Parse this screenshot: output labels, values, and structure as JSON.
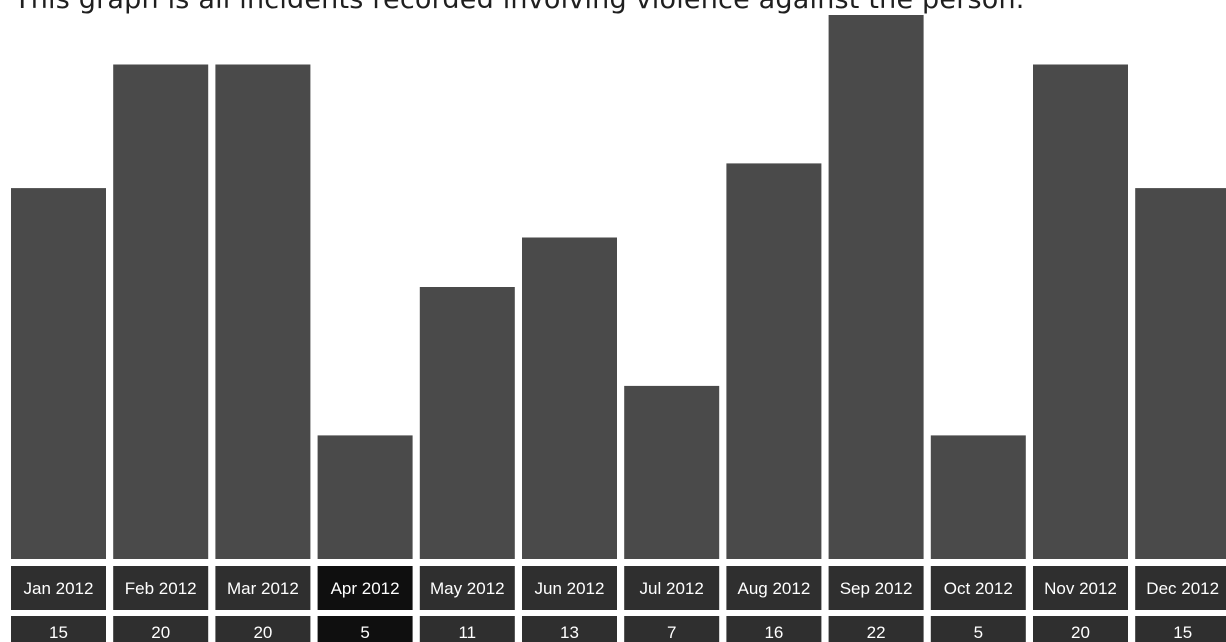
{
  "caption": "This graph is all incidents recorded involving violence against the person.",
  "chart_data": {
    "type": "bar",
    "title": "",
    "xlabel": "",
    "ylabel": "",
    "categories": [
      "Jan 2012",
      "Feb 2012",
      "Mar 2012",
      "Apr 2012",
      "May 2012",
      "Jun 2012",
      "Jul 2012",
      "Aug 2012",
      "Sep 2012",
      "Oct 2012",
      "Nov 2012",
      "Dec 2012"
    ],
    "series": [
      {
        "values": [
          15,
          20,
          20,
          5,
          11,
          13,
          7,
          16,
          22,
          5,
          20,
          15
        ]
      }
    ],
    "ylim": [
      0,
      22
    ],
    "grid": false,
    "legend": "none",
    "highlighted_category": "Apr 2012",
    "colors": {
      "bar": "#4a4a4a",
      "label_box": "#2f2f2f",
      "label_box_highlight": "#0f0f0f",
      "label_text": "#ffffff"
    }
  }
}
